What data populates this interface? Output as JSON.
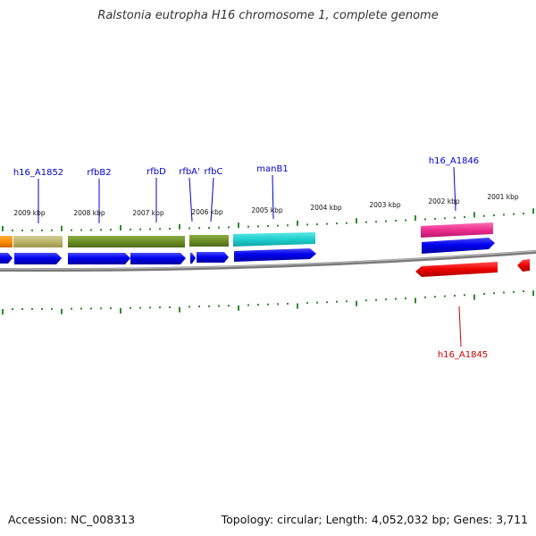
{
  "title": "Ralstonia eutropha H16 chromosome 1, complete genome",
  "footer": {
    "accession": "Accession: NC_008313",
    "topology": "Topology: circular; Length: 4,052,032 bp; Genes: 3,711"
  },
  "kbp_labels": [
    "2009 kbp",
    "2008 kbp",
    "2007 kbp",
    "2006 kbp",
    "2005 kbp",
    "2004 kbp",
    "2003 kbp",
    "2002 kbp",
    "2001 kbp"
  ],
  "gene_labels": [
    "h16_A1852",
    "rfbB2",
    "rfbD",
    "rfbA'",
    "rfbC",
    "manB1",
    "h16_A1846",
    "h16_A1845"
  ],
  "colors": {
    "label_blue": "#0000cc",
    "label_red": "#cc0000",
    "tick_green": "#2e8b2e",
    "backbone": "#888888"
  }
}
